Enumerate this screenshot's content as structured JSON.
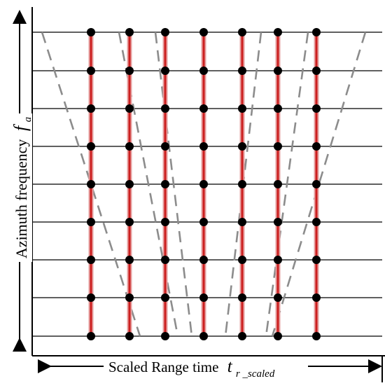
{
  "diagram": {
    "y_axis_label": "Azimuth frequency",
    "y_axis_symbol": "f",
    "y_axis_symbol_sub": "a",
    "x_axis_label": "Scaled Range time",
    "x_axis_symbol": "t",
    "x_axis_symbol_sub": "r _scaled",
    "rows": 9,
    "vertical_lines": 7,
    "dashed_curves": 6,
    "colors": {
      "grid": "#000000",
      "vertical_line": "#cc1f1f",
      "vertical_line_halo": "#e6a0a0",
      "dot": "#000000",
      "dashed": "#8c8c8c"
    }
  }
}
